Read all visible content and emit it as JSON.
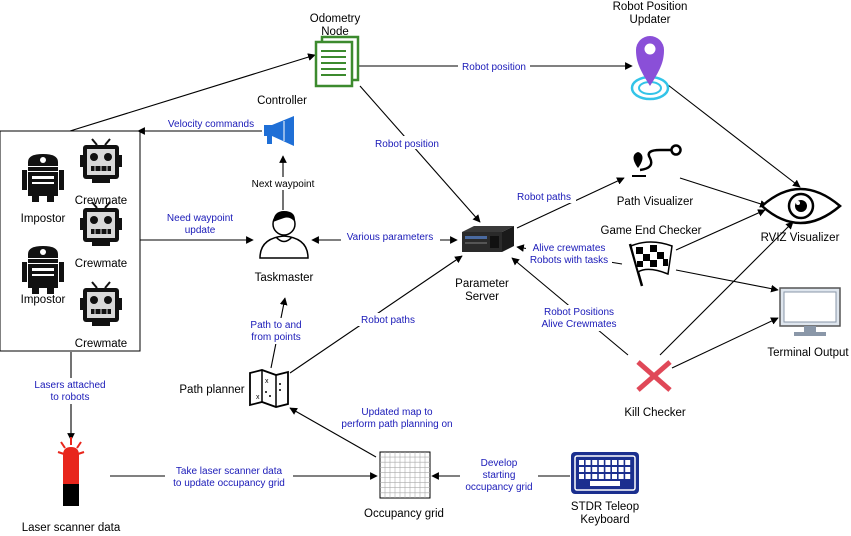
{
  "colors": {
    "edge_label": "#1a1ab8",
    "odometry_green": "#3c8a2e",
    "megaphone_blue": "#1f6fd6",
    "pin_purple": "#8a4fd8",
    "pin_cyan": "#33c4e8",
    "laser_red": "#e8261c",
    "kill_red": "#e04858",
    "keyboard_blue": "#1b2f8f"
  },
  "nodes": {
    "odometry": "Odometry\nNode",
    "updater": "Robot Position\nUpdater",
    "controller": "Controller",
    "path_visualizer": "Path Visualizer",
    "game_end": "Game End Checker",
    "rviz": "RVIZ Visualizer",
    "taskmaster": "Taskmaster",
    "param_server": "Parameter\nServer",
    "terminal": "Terminal Output",
    "path_planner": "Path planner",
    "kill_checker": "Kill Checker",
    "laser": "Laser scanner data",
    "occupancy": "Occupancy grid",
    "teleop": "STDR Teleop\nKeyboard",
    "impostor1": "Impostor",
    "impostor2": "Impostor",
    "crewmate1": "Crewmate",
    "crewmate2": "Crewmate",
    "crewmate3": "Crewmate"
  },
  "edges": {
    "odom_to_updater": "Robot position",
    "odom_to_param": "Robot position",
    "velocity": "Velocity commands",
    "next_waypoint": "Next waypoint",
    "need_waypoint": "Need waypoint\nupdate",
    "various_params": "Various parameters",
    "robot_paths_vis": "Robot paths",
    "alive_tasks": "Alive crewmates\nRobots with tasks",
    "robot_positions_alive": "Robot Positions\nAlive Crewmates",
    "path_to_from": "Path to and\nfrom points",
    "robot_paths_planner": "Robot paths",
    "lasers_attached": "Lasers attached\nto robots",
    "updated_map": "Updated map to\nperform path planning on",
    "take_laser": "Take laser scanner data\nto update occupancy grid",
    "develop_grid": "Develop\nstarting\noccupancy grid"
  }
}
